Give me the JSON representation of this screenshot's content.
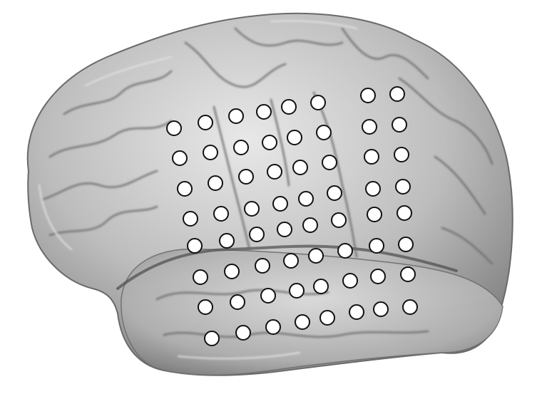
{
  "scene": {
    "subject": "brain-lateral-surface",
    "brain_color": "#bdbdbd",
    "shadow_color": "#5a5a5a",
    "highlight_color": "#f0f0f0",
    "electrode_fill": "#ffffff",
    "electrode_stroke": "#111111",
    "electrode_count": 75
  }
}
